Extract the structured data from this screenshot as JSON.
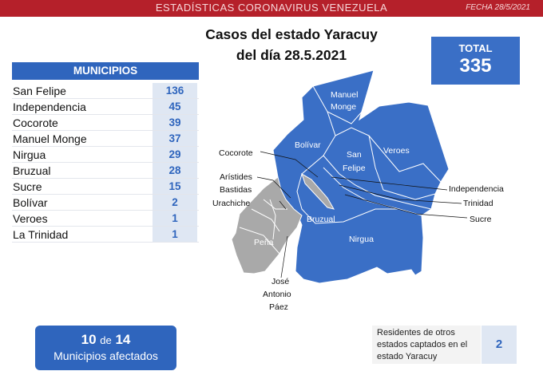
{
  "header": {
    "title": "ESTADÍSTICAS CORONAVIRUS VENEZUELA",
    "date": "FECHA 28/5/2021"
  },
  "main_title": {
    "line1": "Casos del estado Yaracuy",
    "line2": "del día 28.5.2021"
  },
  "total": {
    "label": "TOTAL",
    "value": "335"
  },
  "municipios": {
    "header": "MUNICIPIOS",
    "rows": [
      {
        "name": "San Felipe",
        "cases": "136"
      },
      {
        "name": "Independencia",
        "cases": "45"
      },
      {
        "name": "Cocorote",
        "cases": "39"
      },
      {
        "name": "Manuel Monge",
        "cases": "37"
      },
      {
        "name": "Nirgua",
        "cases": "29"
      },
      {
        "name": "Bruzual",
        "cases": "28"
      },
      {
        "name": "Sucre",
        "cases": "15"
      },
      {
        "name": "Bolívar",
        "cases": "2"
      },
      {
        "name": "Veroes",
        "cases": "1"
      },
      {
        "name": "La Trinidad",
        "cases": "1"
      }
    ]
  },
  "affected": {
    "count": "10",
    "of": "de",
    "total": "14",
    "label": "Municipios afectados"
  },
  "residents": {
    "line1": "Residentes de otros",
    "line2": "estados captados en el",
    "line3": "estado Yaracuy",
    "value": "2"
  },
  "map": {
    "colors": {
      "affected": "#3a6fc6",
      "not_affected": "#a9a9a9",
      "border": "#ffffff"
    },
    "labels": {
      "manuel_monge_1": "Manuel",
      "manuel_monge_2": "Monge",
      "bolivar": "Bolívar",
      "san_felipe_1": "San",
      "san_felipe_2": "Felipe",
      "veroes": "Veroes",
      "bruzual": "Bruzual",
      "nirgua": "Nirgua",
      "pena": "Peña",
      "cocorote": "Cocorote",
      "aristides_1": "Arístides",
      "aristides_2": "Bastidas",
      "urachiche": "Urachiche",
      "independencia": "Independencia",
      "trinidad": "Trinidad",
      "sucre": "Sucre",
      "jap_1": "José",
      "jap_2": "Antonio",
      "jap_3": "Páez"
    }
  }
}
